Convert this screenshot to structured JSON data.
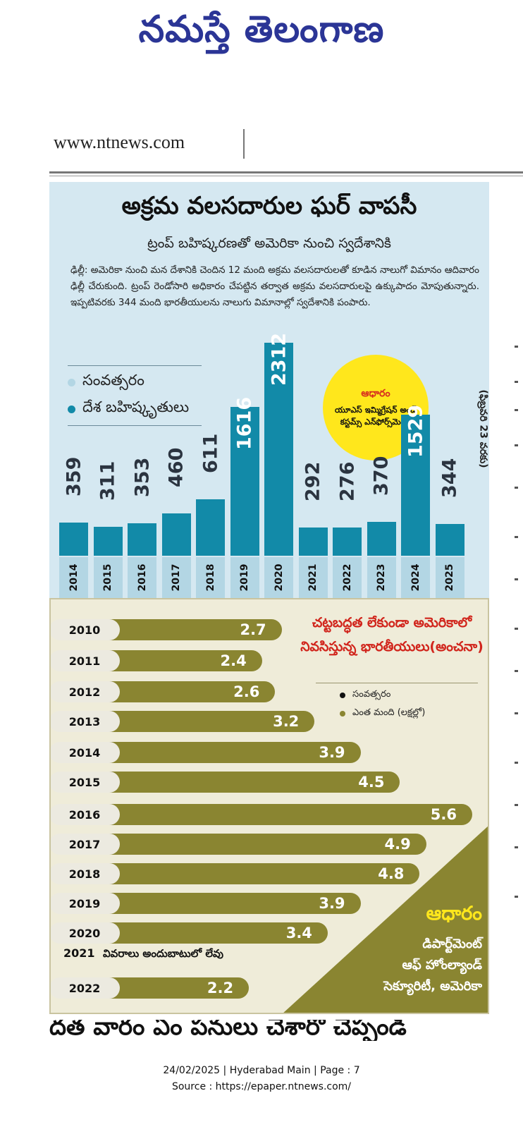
{
  "masthead": "నమస్తే తెలంగాణ",
  "site_url": "www.ntnews.com",
  "article": {
    "headline": "అక్రమ వలసదారుల ఘర్ వాపసీ",
    "subhead": "ట్రంప్ బహిష్కరణతో అమెరికా నుంచి స్వదేశానికి",
    "body": "ఢిల్లీ: అమెరికా నుంచి మన దేశానికి చెందిన 12 మంది అక్రమ వలసదారులతో కూడిన నాలుగో విమానం ఆదివారం ఢిల్లీ చేరుకుంది. ట్రంప్ రెండోసారి అధికారం చేపట్టిన తర్వాత అక్రమ వలసదారులపై ఉక్కుపాదం మోపుతున్నారు. ఇప్పటివరకు 344 మంది భారతీయులను నాలుగు విమానాల్లో స్వదేశానికి పంపారు."
  },
  "top_chart": {
    "legend": {
      "year": "సంవత్సరం",
      "deportees": "దేశ బహిష్కృతులు"
    },
    "source_title": "ఆధారం",
    "source_body": "యూఎస్ ఇమ్మిగ్రేషన్ అండ్ కస్టమ్స్ ఎన్‌ఫోర్స్‌మెంట్",
    "note": "(ఫిబ్రవరి 23 వరకు)",
    "colors": {
      "bar": "#128aa8",
      "year_cell": "#b3d6e4",
      "panel": "#d5e8f1"
    }
  },
  "bottom_chart": {
    "title": "చట్టబద్ధత లేకుండా అమెరికాలో నివసిస్తున్న భారతీయులు(అంచనా)",
    "legend": {
      "year": "సంవత్సరం",
      "count": "ఎంత మంది (లక్షల్లో)"
    },
    "na_year": "2021",
    "na_text": "వివరాలు అందుబాటులో లేవు",
    "source_title": "ఆధారం",
    "source_lines": [
      "డిపార్ట్‌మెంట్",
      "ఆఫ్ హోంల్యాండ్",
      "సెక్యూరిటీ, అమెరికా"
    ],
    "colors": {
      "bar": "#8a8531",
      "panel": "#efecd9",
      "source_title": "#ffe71c"
    }
  },
  "chart_data": [
    {
      "type": "bar",
      "categories": [
        "2014",
        "2015",
        "2016",
        "2017",
        "2018",
        "2019",
        "2020",
        "2021",
        "2022",
        "2023",
        "2024",
        "2025"
      ],
      "values": [
        359,
        311,
        353,
        460,
        611,
        1616,
        2312,
        292,
        276,
        370,
        1529,
        344
      ],
      "value_labels": [
        "359",
        "311",
        "353",
        "460",
        "611",
        "1616",
        "2312",
        "292",
        "276",
        "370",
        "1529",
        "344"
      ],
      "ylim": [
        0,
        2312
      ]
    },
    {
      "type": "bar",
      "orientation": "horizontal",
      "categories": [
        "2010",
        "2011",
        "2012",
        "2013",
        "2014",
        "2015",
        "2016",
        "2017",
        "2018",
        "2019",
        "2020",
        "2022"
      ],
      "values": [
        2.7,
        2.4,
        2.6,
        3.2,
        3.9,
        4.5,
        5.6,
        4.9,
        4.8,
        3.9,
        3.4,
        2.2
      ],
      "value_labels": [
        "2.7",
        "2.4",
        "2.6",
        "3.2",
        "3.9",
        "4.5",
        "5.6",
        "4.9",
        "4.8",
        "3.9",
        "3.4",
        "2.2"
      ],
      "xlim": [
        0,
        5.6
      ]
    }
  ],
  "footer": {
    "next_headline": "దత వారం ఏం పనులు చేశారో చెప్పండి",
    "line1": "24/02/2025 | Hyderabad Main | Page : 7",
    "line2": "Source : https://epaper.ntnews.com/"
  }
}
